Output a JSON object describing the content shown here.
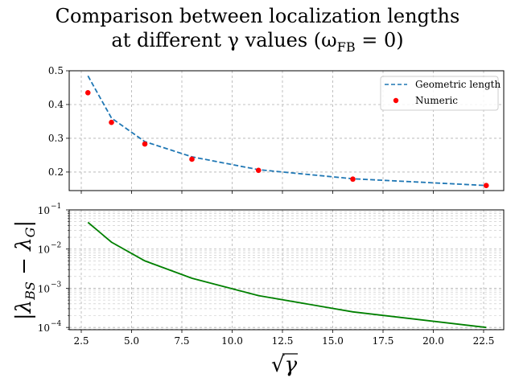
{
  "figure": {
    "title_line1": "Comparison between localization lengths",
    "title_line2": "at different γ values (ω",
    "title_line2_sub": "FB",
    "title_line2_end": " = 0)"
  },
  "chart_data": [
    {
      "type": "line",
      "xlabel": "√γ",
      "ylabel": "",
      "ylim": [
        0.145,
        0.5
      ],
      "xlim": [
        1.9,
        23.5
      ],
      "x_ticks": [
        2.5,
        5.0,
        7.5,
        10.0,
        12.5,
        15.0,
        17.5,
        20.0,
        22.5
      ],
      "y_ticks": [
        0.2,
        0.3,
        0.4,
        0.5
      ],
      "y_tick_labels": [
        "0.2",
        "0.3",
        "0.4",
        "0.5"
      ],
      "grid": true,
      "legend_position": "top-right",
      "series": [
        {
          "name": "Geometric length",
          "style": "dashed",
          "color": "#1f77b4",
          "x": [
            2.83,
            4.0,
            5.66,
            8.0,
            11.31,
            16.0,
            22.63
          ],
          "y": [
            0.485,
            0.36,
            0.29,
            0.245,
            0.207,
            0.18,
            0.16
          ]
        },
        {
          "name": "Numeric",
          "style": "scatter",
          "color": "#ff0000",
          "x": [
            2.83,
            4.0,
            5.66,
            8.0,
            11.31,
            16.0,
            22.63
          ],
          "y": [
            0.435,
            0.347,
            0.283,
            0.238,
            0.205,
            0.179,
            0.16
          ]
        }
      ]
    },
    {
      "type": "line",
      "xlabel": "√γ",
      "ylabel": "|λ_BS − λ_G|",
      "yscale": "log",
      "ylim": [
        8.75e-05,
        0.1
      ],
      "xlim": [
        1.9,
        23.5
      ],
      "x_ticks": [
        2.5,
        5.0,
        7.5,
        10.0,
        12.5,
        15.0,
        17.5,
        20.0,
        22.5
      ],
      "x_tick_labels": [
        "2.5",
        "5.0",
        "7.5",
        "10.0",
        "12.5",
        "15.0",
        "17.5",
        "20.0",
        "22.5"
      ],
      "y_ticks": [
        0.0001,
        0.001,
        0.01,
        0.1
      ],
      "y_tick_exponents": [
        "−4",
        "−3",
        "−2",
        "−1"
      ],
      "y_tick_base": "10",
      "grid": true,
      "series": [
        {
          "color": "#008000",
          "x": [
            2.83,
            4.0,
            5.66,
            8.0,
            11.31,
            16.0,
            22.63
          ],
          "y": [
            0.048,
            0.015,
            0.005,
            0.0018,
            0.00065,
            0.00025,
            0.0001
          ]
        }
      ]
    }
  ]
}
